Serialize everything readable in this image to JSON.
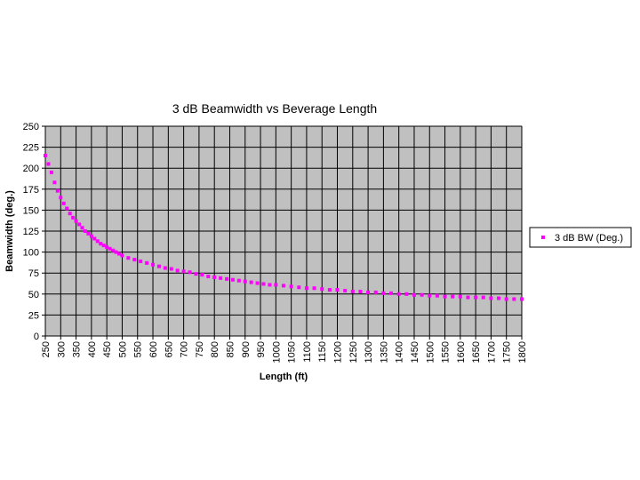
{
  "chart_data": {
    "type": "scatter",
    "title": "3 dB Beamwidth vs  Beverage Length",
    "xlabel": "Length (ft)",
    "ylabel": "Beamwidth (deg.)",
    "xlim": [
      250,
      1800
    ],
    "ylim": [
      0,
      250
    ],
    "x_ticks": [
      "250",
      "300",
      "350",
      "400",
      "450",
      "500",
      "550",
      "600",
      "650",
      "700",
      "750",
      "800",
      "850",
      "900",
      "950",
      "1000",
      "1050",
      "1100",
      "1150",
      "1200",
      "1250",
      "1300",
      "1350",
      "1400",
      "1450",
      "1500",
      "1550",
      "1600",
      "1650",
      "1700",
      "1750",
      "1800"
    ],
    "y_ticks": [
      "0",
      "25",
      "50",
      "75",
      "100",
      "125",
      "150",
      "175",
      "200",
      "225",
      "250"
    ],
    "grid": true,
    "legend_position": "right",
    "plot_background": "#c0c0c0",
    "series": [
      {
        "name": "3 dB BW (Deg.)",
        "color": "#ff00ff",
        "marker": "square",
        "x": [
          250,
          260,
          270,
          280,
          290,
          300,
          310,
          320,
          330,
          340,
          350,
          360,
          370,
          380,
          390,
          400,
          410,
          420,
          430,
          440,
          450,
          460,
          470,
          480,
          490,
          500,
          520,
          540,
          560,
          580,
          600,
          620,
          640,
          660,
          680,
          700,
          720,
          740,
          760,
          780,
          800,
          820,
          840,
          860,
          880,
          900,
          920,
          940,
          960,
          980,
          1000,
          1025,
          1050,
          1075,
          1100,
          1125,
          1150,
          1175,
          1200,
          1225,
          1250,
          1275,
          1300,
          1325,
          1350,
          1375,
          1400,
          1425,
          1450,
          1475,
          1500,
          1525,
          1550,
          1575,
          1600,
          1625,
          1650,
          1675,
          1700,
          1725,
          1750,
          1775,
          1800
        ],
        "y": [
          215,
          205,
          195,
          183,
          173,
          165,
          158,
          152,
          146,
          141,
          137,
          133,
          129,
          125,
          122,
          119,
          116,
          113,
          110,
          108,
          106,
          104,
          102,
          100,
          98,
          96,
          93,
          91,
          89,
          87,
          85,
          83,
          81,
          80,
          78,
          77,
          76,
          74,
          73,
          71,
          70,
          69,
          68,
          67,
          66,
          65,
          64,
          63,
          62,
          61,
          61,
          60,
          59,
          58,
          57,
          57,
          56,
          55,
          55,
          54,
          53,
          53,
          52,
          52,
          51,
          51,
          50,
          50,
          49,
          49,
          48,
          48,
          47,
          47,
          47,
          46,
          46,
          46,
          45,
          45,
          44,
          44,
          44
        ]
      }
    ]
  }
}
